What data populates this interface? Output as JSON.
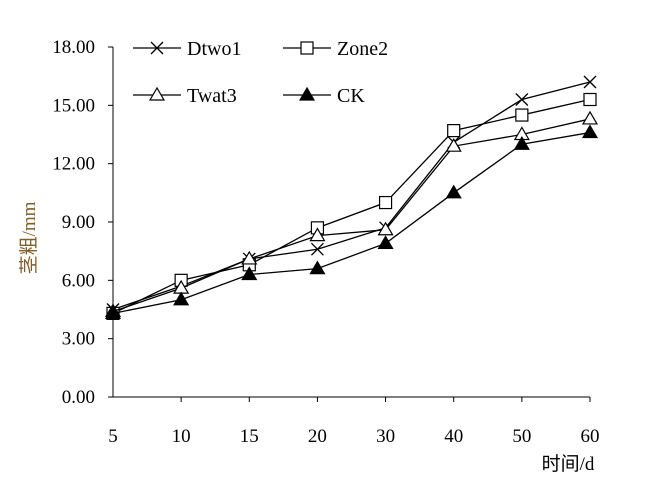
{
  "chart_data": {
    "type": "line",
    "categories": [
      "5",
      "10",
      "15",
      "20",
      "30",
      "40",
      "50",
      "60"
    ],
    "xlabel": "时间/d",
    "ylabel": "茎粗/mm",
    "ylim": [
      0,
      18
    ],
    "yticks": [
      "0.00",
      "3.00",
      "6.00",
      "9.00",
      "12.00",
      "15.00",
      "18.00"
    ],
    "grid": false,
    "legend_position": "top",
    "series": [
      {
        "name": "Dtwo1",
        "marker": "x",
        "values": [
          4.5,
          5.7,
          7.1,
          7.6,
          8.7,
          13.1,
          15.3,
          16.2
        ]
      },
      {
        "name": "Zone2",
        "marker": "square-open",
        "values": [
          4.3,
          6.0,
          6.8,
          8.7,
          10.0,
          13.7,
          14.5,
          15.3
        ]
      },
      {
        "name": "Twat3",
        "marker": "triangle-open",
        "values": [
          4.4,
          5.6,
          7.1,
          8.3,
          8.6,
          12.9,
          13.5,
          14.3
        ]
      },
      {
        "name": "CK",
        "marker": "triangle-filled",
        "values": [
          4.3,
          5.0,
          6.3,
          6.6,
          7.9,
          10.5,
          13.0,
          13.6
        ]
      }
    ],
    "colors": {
      "line": "#000000",
      "ylabel": "#7f5f2a",
      "xlabel": "#000000"
    }
  }
}
